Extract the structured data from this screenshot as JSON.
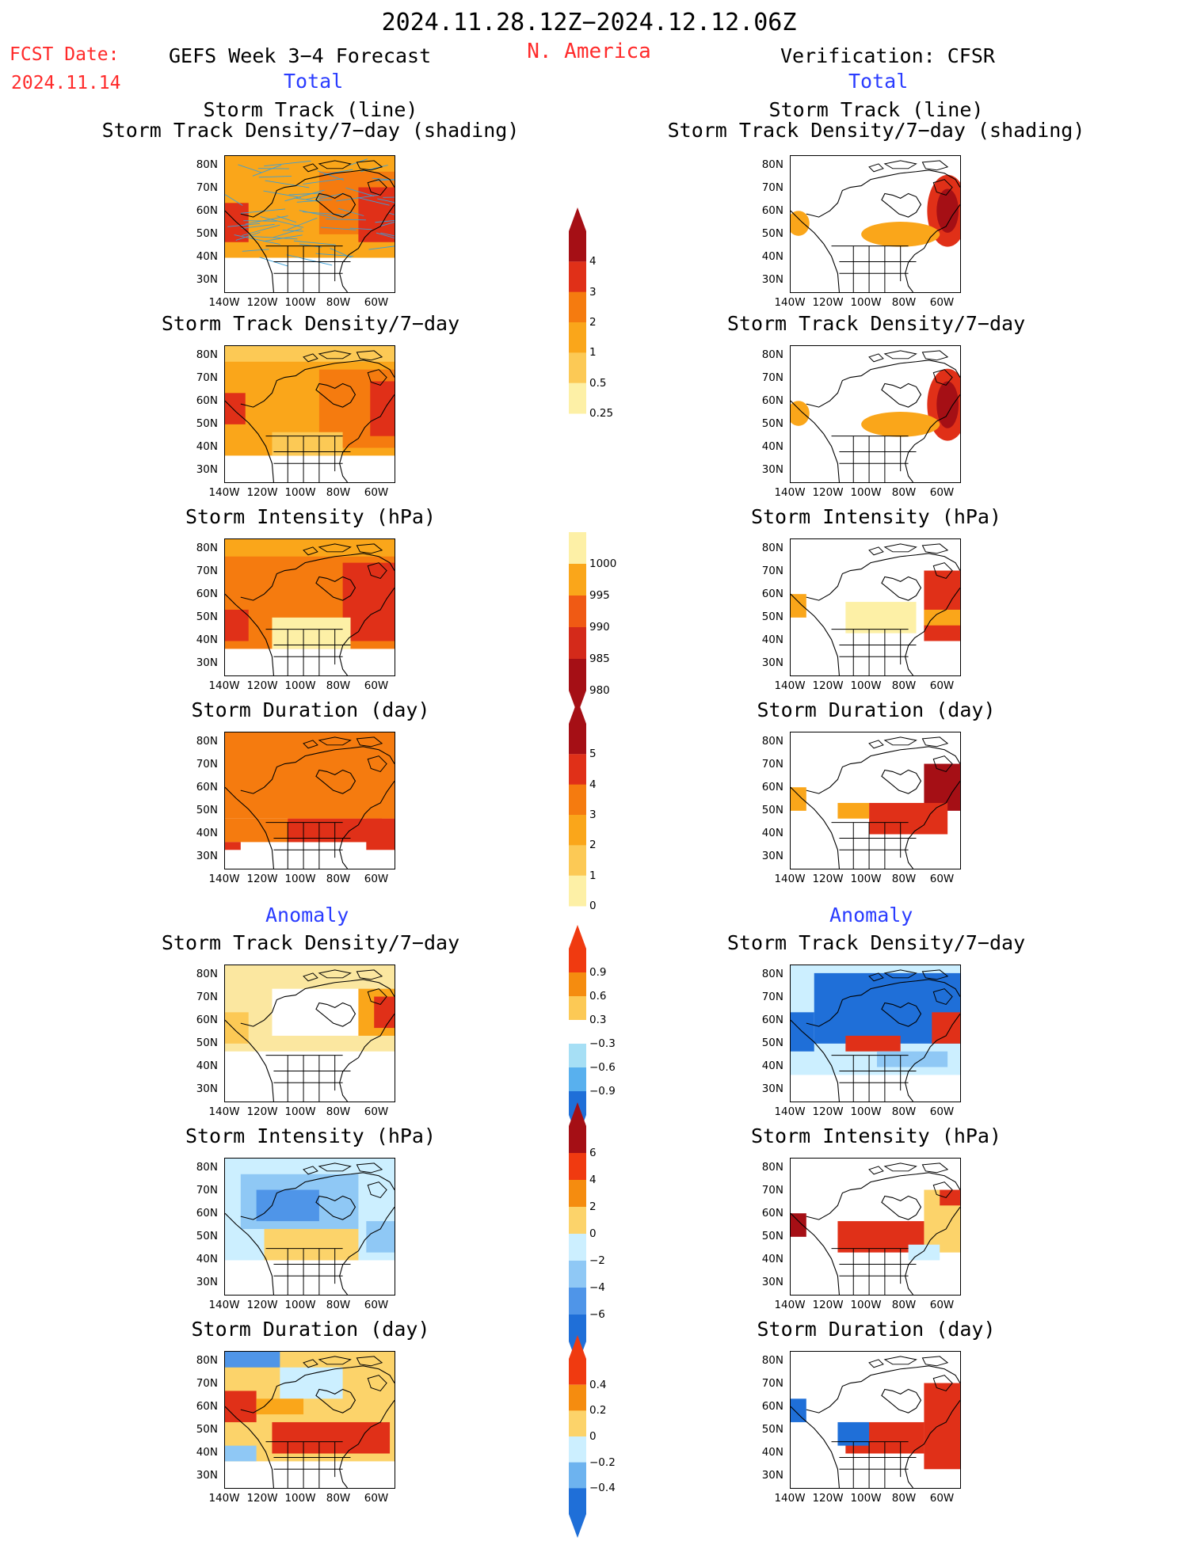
{
  "header": {
    "date_range": "2024.11.28.12Z−2024.12.12.06Z",
    "region": "N. America",
    "fcst_label": "FCST Date:",
    "fcst_date": "2024.11.14",
    "left_title": "GEFS Week 3−4 Forecast",
    "right_title": "Verification: CFSR",
    "total_label": "Total",
    "anomaly_label": "Anomaly"
  },
  "panel_titles": {
    "track_line": "Storm Track (line)",
    "track_shading": "Storm Track Density/7−day (shading)",
    "density": "Storm Track Density/7−day",
    "intensity": "Storm Intensity (hPa)",
    "duration": "Storm Duration (day)"
  },
  "axis": {
    "lat_ticks": [
      "80N",
      "70N",
      "60N",
      "50N",
      "40N",
      "30N"
    ],
    "lon_ticks": [
      "140W",
      "120W",
      "100W",
      "80W",
      "60W"
    ]
  },
  "colorbars": {
    "density": {
      "labels": [
        "4",
        "3",
        "2",
        "1",
        "0.5",
        "0.25"
      ],
      "colors": [
        "#a50f15",
        "#e03018",
        "#f57b0f",
        "#faa61a",
        "#fcc955",
        "#fdf0a6"
      ]
    },
    "intensity": {
      "labels": [
        "1000",
        "995",
        "990",
        "985",
        "980"
      ],
      "colors": [
        "#fdf0a6",
        "#faa61a",
        "#f05a14",
        "#d42a1a",
        "#a50f15"
      ]
    },
    "duration": {
      "labels": [
        "5",
        "4",
        "3",
        "2",
        "1",
        "0"
      ],
      "colors": [
        "#a50f15",
        "#e03018",
        "#f57b0f",
        "#faa61a",
        "#fcc955",
        "#fdf0a6"
      ]
    },
    "density_anom": {
      "labels": [
        "0.9",
        "0.6",
        "0.3",
        "−0.3",
        "−0.6",
        "−0.9"
      ],
      "colors": [
        "#f03a10",
        "#f58c0f",
        "#fcc955",
        "#ffffff",
        "#a6dff5",
        "#58b0ee",
        "#1f6fd8"
      ]
    },
    "intensity_anom": {
      "labels": [
        "6",
        "4",
        "2",
        "0",
        "−2",
        "−4",
        "−6"
      ],
      "colors": [
        "#a50f15",
        "#f03a10",
        "#f58c0f",
        "#fcd36a",
        "#ccefff",
        "#8fc8f5",
        "#4f95e8",
        "#1f6fd8"
      ]
    },
    "duration_anom": {
      "labels": [
        "0.4",
        "0.2",
        "0",
        "−0.2",
        "−0.4"
      ],
      "colors": [
        "#f03a10",
        "#f58c0f",
        "#fcd36a",
        "#ccefff",
        "#6db3ef",
        "#1f6fd8"
      ]
    }
  },
  "chart_data": [
    {
      "type": "heatmap",
      "title": "Storm Track (line) / Storm Track Density/7−day (shading)",
      "source": "GEFS",
      "kind": "Total"
    },
    {
      "type": "heatmap",
      "title": "Storm Track (line) / Storm Track Density/7−day (shading)",
      "source": "CFSR",
      "kind": "Total"
    },
    {
      "type": "heatmap",
      "title": "Storm Track Density/7−day",
      "source": "GEFS",
      "kind": "Total"
    },
    {
      "type": "heatmap",
      "title": "Storm Track Density/7−day",
      "source": "CFSR",
      "kind": "Total"
    },
    {
      "type": "heatmap",
      "title": "Storm Intensity (hPa)",
      "source": "GEFS",
      "kind": "Total"
    },
    {
      "type": "heatmap",
      "title": "Storm Intensity (hPa)",
      "source": "CFSR",
      "kind": "Total"
    },
    {
      "type": "heatmap",
      "title": "Storm Duration (day)",
      "source": "GEFS",
      "kind": "Total"
    },
    {
      "type": "heatmap",
      "title": "Storm Duration (day)",
      "source": "CFSR",
      "kind": "Total"
    },
    {
      "type": "heatmap",
      "title": "Storm Track Density/7−day",
      "source": "GEFS",
      "kind": "Anomaly"
    },
    {
      "type": "heatmap",
      "title": "Storm Track Density/7−day",
      "source": "CFSR",
      "kind": "Anomaly"
    },
    {
      "type": "heatmap",
      "title": "Storm Intensity (hPa)",
      "source": "GEFS",
      "kind": "Anomaly"
    },
    {
      "type": "heatmap",
      "title": "Storm Intensity (hPa)",
      "source": "CFSR",
      "kind": "Anomaly"
    },
    {
      "type": "heatmap",
      "title": "Storm Duration (day)",
      "source": "GEFS",
      "kind": "Anomaly"
    },
    {
      "type": "heatmap",
      "title": "Storm Duration (day)",
      "source": "CFSR",
      "kind": "Anomaly"
    }
  ]
}
